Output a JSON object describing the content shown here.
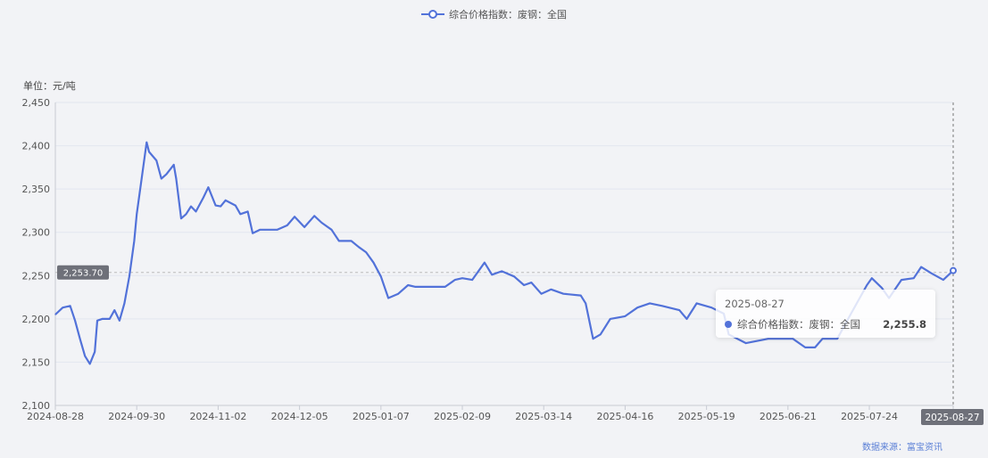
{
  "legend": {
    "label": "综合价格指数：废钢：全国"
  },
  "unit_label": "单位：元/吨",
  "source_label": "数据来源：富宝资讯",
  "colors": {
    "line": "#5272d9",
    "grid": "#e3e6ef",
    "pointer_label_bg": "#6e7079"
  },
  "axis_pointer": {
    "y_label": "2,253.70",
    "y_value": 2253.7,
    "x_label": "2025-08-27"
  },
  "tooltip": {
    "date": "2025-08-27",
    "series": "综合价格指数：废钢：全国",
    "value": "2,255.8"
  },
  "chart_data": {
    "type": "line",
    "xlabel": "",
    "ylabel": "单位：元/吨",
    "ylim": [
      2100,
      2450
    ],
    "yticks": [
      "2,100",
      "2,150",
      "2,200",
      "2,250",
      "2,300",
      "2,350",
      "2,400",
      "2,450"
    ],
    "xlim": [
      "2024-08-28",
      "2025-08-27"
    ],
    "xticks": [
      "2024-08-28",
      "2024-09-30",
      "2024-11-02",
      "2024-12-05",
      "2025-01-07",
      "2025-02-09",
      "2025-03-14",
      "2025-04-16",
      "2025-05-19",
      "2025-06-21",
      "2025-07-24",
      "2025-08-27"
    ],
    "grid": true,
    "legend_position": "top",
    "series": [
      {
        "name": "综合价格指数：废钢：全国",
        "points": [
          [
            "2024-08-28",
            2205
          ],
          [
            "2024-08-31",
            2213
          ],
          [
            "2024-09-03",
            2215
          ],
          [
            "2024-09-05",
            2198
          ],
          [
            "2024-09-07",
            2177
          ],
          [
            "2024-09-09",
            2157
          ],
          [
            "2024-09-11",
            2148
          ],
          [
            "2024-09-13",
            2162
          ],
          [
            "2024-09-14",
            2198
          ],
          [
            "2024-09-16",
            2200
          ],
          [
            "2024-09-19",
            2200
          ],
          [
            "2024-09-21",
            2210
          ],
          [
            "2024-09-23",
            2198
          ],
          [
            "2024-09-25",
            2218
          ],
          [
            "2024-09-27",
            2249
          ],
          [
            "2024-09-29",
            2290
          ],
          [
            "2024-09-30",
            2321
          ],
          [
            "2024-10-02",
            2362
          ],
          [
            "2024-10-04",
            2404
          ],
          [
            "2024-10-05",
            2393
          ],
          [
            "2024-10-08",
            2383
          ],
          [
            "2024-10-10",
            2362
          ],
          [
            "2024-10-12",
            2367
          ],
          [
            "2024-10-15",
            2378
          ],
          [
            "2024-10-16",
            2362
          ],
          [
            "2024-10-18",
            2316
          ],
          [
            "2024-10-20",
            2321
          ],
          [
            "2024-10-22",
            2330
          ],
          [
            "2024-10-24",
            2324
          ],
          [
            "2024-10-27",
            2340
          ],
          [
            "2024-10-29",
            2352
          ],
          [
            "2024-11-01",
            2331
          ],
          [
            "2024-11-03",
            2330
          ],
          [
            "2024-11-05",
            2337
          ],
          [
            "2024-11-09",
            2331
          ],
          [
            "2024-11-11",
            2321
          ],
          [
            "2024-11-14",
            2324
          ],
          [
            "2024-11-16",
            2299
          ],
          [
            "2024-11-19",
            2303
          ],
          [
            "2024-11-21",
            2303
          ],
          [
            "2024-11-26",
            2303
          ],
          [
            "2024-11-30",
            2308
          ],
          [
            "2024-12-03",
            2318
          ],
          [
            "2024-12-07",
            2306
          ],
          [
            "2024-12-11",
            2319
          ],
          [
            "2024-12-14",
            2311
          ],
          [
            "2024-12-18",
            2303
          ],
          [
            "2024-12-21",
            2290
          ],
          [
            "2024-12-26",
            2290
          ],
          [
            "2024-12-29",
            2283
          ],
          [
            "2025-01-01",
            2277
          ],
          [
            "2025-01-04",
            2265
          ],
          [
            "2025-01-07",
            2249
          ],
          [
            "2025-01-10",
            2224
          ],
          [
            "2025-01-14",
            2229
          ],
          [
            "2025-01-18",
            2239
          ],
          [
            "2025-01-21",
            2237
          ],
          [
            "2025-02-02",
            2237
          ],
          [
            "2025-02-06",
            2245
          ],
          [
            "2025-02-09",
            2247
          ],
          [
            "2025-02-13",
            2245
          ],
          [
            "2025-02-18",
            2265
          ],
          [
            "2025-02-21",
            2251
          ],
          [
            "2025-02-25",
            2255
          ],
          [
            "2025-03-02",
            2249
          ],
          [
            "2025-03-06",
            2239
          ],
          [
            "2025-03-09",
            2242
          ],
          [
            "2025-03-13",
            2229
          ],
          [
            "2025-03-17",
            2234
          ],
          [
            "2025-03-22",
            2229
          ],
          [
            "2025-03-29",
            2227
          ],
          [
            "2025-03-31",
            2218
          ],
          [
            "2025-04-03",
            2177
          ],
          [
            "2025-04-06",
            2182
          ],
          [
            "2025-04-10",
            2200
          ],
          [
            "2025-04-16",
            2203
          ],
          [
            "2025-04-21",
            2213
          ],
          [
            "2025-04-26",
            2218
          ],
          [
            "2025-05-01",
            2215
          ],
          [
            "2025-05-08",
            2210
          ],
          [
            "2025-05-11",
            2200
          ],
          [
            "2025-05-15",
            2218
          ],
          [
            "2025-05-21",
            2213
          ],
          [
            "2025-05-26",
            2206
          ],
          [
            "2025-05-28",
            2182
          ],
          [
            "2025-06-04",
            2172
          ],
          [
            "2025-06-13",
            2177
          ],
          [
            "2025-06-23",
            2177
          ],
          [
            "2025-06-28",
            2167
          ],
          [
            "2025-07-02",
            2167
          ],
          [
            "2025-07-05",
            2177
          ],
          [
            "2025-07-11",
            2177
          ],
          [
            "2025-07-16",
            2203
          ],
          [
            "2025-07-23",
            2239
          ],
          [
            "2025-07-25",
            2247
          ],
          [
            "2025-07-29",
            2236
          ],
          [
            "2025-08-01",
            2224
          ],
          [
            "2025-08-06",
            2245
          ],
          [
            "2025-08-11",
            2247
          ],
          [
            "2025-08-14",
            2260
          ],
          [
            "2025-08-18",
            2253
          ],
          [
            "2025-08-23",
            2245
          ],
          [
            "2025-08-27",
            2255.8
          ]
        ]
      }
    ]
  }
}
